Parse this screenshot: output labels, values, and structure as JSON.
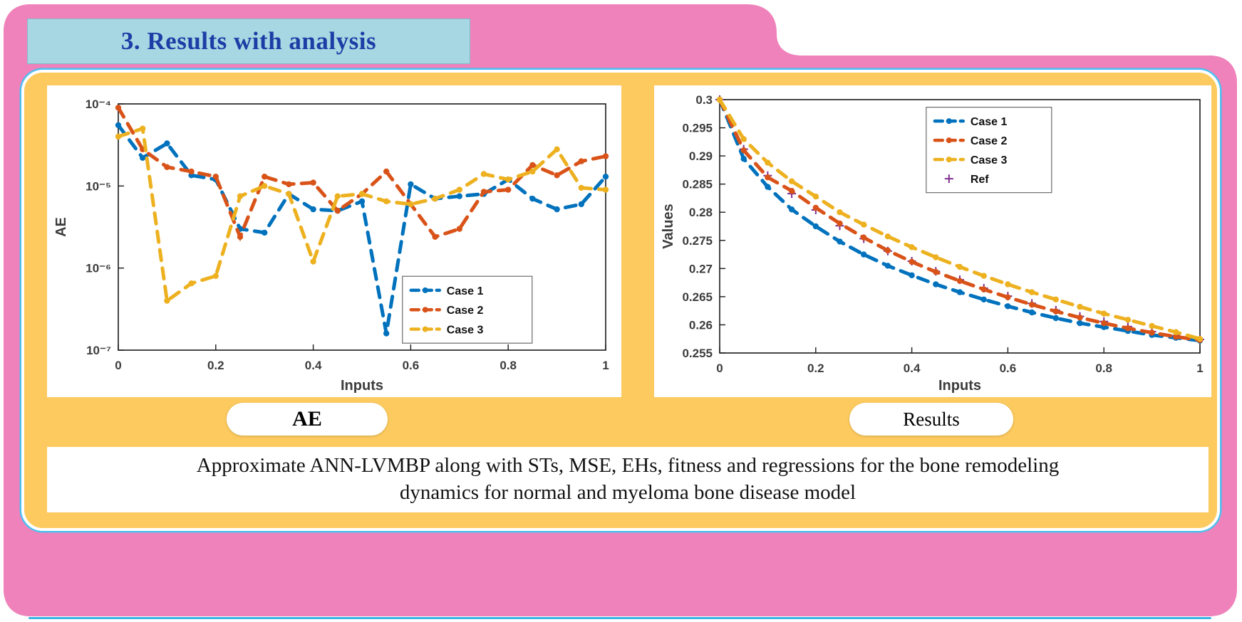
{
  "title": {
    "text": "3. Results with analysis"
  },
  "labels": {
    "ae_pill": "AE",
    "results_pill": "Results"
  },
  "caption": {
    "line1": "Approximate ANN-LVMBP along with STs, MSE, EHs, fitness and regressions for the bone remodeling",
    "line2": "dynamics for normal and myeloma bone disease model"
  },
  "colors": {
    "pink_card": "#ef82ba",
    "yellow_panel": "#fcca5e",
    "title_bg": "#a7d7e2",
    "title_text": "#1d3da6",
    "panel_outline": "#4cc0f0",
    "case1": "#0072BD",
    "case2": "#D95319",
    "case3": "#EDB120",
    "ref": "#7E2F8E"
  },
  "chart_data": [
    {
      "type": "line",
      "name": "ae-chart",
      "title": "",
      "xlabel": "Inputs",
      "ylabel": "AE",
      "xlim": [
        0,
        1
      ],
      "ylim": [
        1e-07,
        0.0001
      ],
      "yscale": "log",
      "grid": false,
      "legend_position": "inside-lower-right",
      "xticks": [
        {
          "v": 0,
          "label": "0"
        },
        {
          "v": 0.2,
          "label": "0.2"
        },
        {
          "v": 0.4,
          "label": "0.4"
        },
        {
          "v": 0.6,
          "label": "0.6"
        },
        {
          "v": 0.8,
          "label": "0.8"
        },
        {
          "v": 1,
          "label": "1"
        }
      ],
      "yticks": [
        {
          "v": 1e-07,
          "label": "10⁻⁷"
        },
        {
          "v": 1e-06,
          "label": "10⁻⁶"
        },
        {
          "v": 1e-05,
          "label": "10⁻⁵"
        },
        {
          "v": 0.0001,
          "label": "10⁻⁴"
        }
      ],
      "x": [
        0,
        0.05,
        0.1,
        0.15,
        0.2,
        0.25,
        0.3,
        0.35,
        0.4,
        0.45,
        0.5,
        0.55,
        0.6,
        0.65,
        0.7,
        0.75,
        0.8,
        0.85,
        0.9,
        0.95,
        1
      ],
      "series": [
        {
          "name": "Case 1",
          "color": "#0072BD",
          "style": "dashed",
          "values": [
            5.5e-05,
            2.2e-05,
            3.3e-05,
            1.35e-05,
            1.2e-05,
            3e-06,
            2.7e-06,
            8e-06,
            5.2e-06,
            5e-06,
            6.5e-06,
            1.6e-07,
            1.05e-05,
            7e-06,
            7.5e-06,
            8e-06,
            1.2e-05,
            7e-06,
            5.2e-06,
            6e-06,
            1.3e-05
          ]
        },
        {
          "name": "Case 2",
          "color": "#D95319",
          "style": "dashed",
          "values": [
            9e-05,
            2.8e-05,
            1.7e-05,
            1.5e-05,
            1.3e-05,
            2.4e-06,
            1.3e-05,
            1.05e-05,
            1.1e-05,
            5e-06,
            8e-06,
            1.5e-05,
            6e-06,
            2.4e-06,
            3e-06,
            8.5e-06,
            9e-06,
            1.8e-05,
            1.35e-05,
            2e-05,
            2.3e-05
          ]
        },
        {
          "name": "Case 3",
          "color": "#EDB120",
          "style": "dashed",
          "values": [
            4e-05,
            5e-05,
            4e-07,
            6.5e-07,
            8e-07,
            7.5e-06,
            1e-05,
            8e-06,
            1.2e-06,
            7.5e-06,
            8e-06,
            6.5e-06,
            6e-06,
            7e-06,
            9e-06,
            1.4e-05,
            1.2e-05,
            1.5e-05,
            2.8e-05,
            9.5e-06,
            9e-06
          ]
        }
      ]
    },
    {
      "type": "line",
      "name": "results-chart",
      "title": "",
      "xlabel": "Inputs",
      "ylabel": "Values",
      "xlim": [
        0,
        1
      ],
      "ylim": [
        0.255,
        0.3
      ],
      "yscale": "linear",
      "grid": false,
      "legend_position": "inside-upper-right",
      "xticks": [
        {
          "v": 0,
          "label": "0"
        },
        {
          "v": 0.2,
          "label": "0.2"
        },
        {
          "v": 0.4,
          "label": "0.4"
        },
        {
          "v": 0.6,
          "label": "0.6"
        },
        {
          "v": 0.8,
          "label": "0.8"
        },
        {
          "v": 1,
          "label": "1"
        }
      ],
      "yticks": [
        {
          "v": 0.255,
          "label": "0.255"
        },
        {
          "v": 0.26,
          "label": "0.26"
        },
        {
          "v": 0.265,
          "label": "0.265"
        },
        {
          "v": 0.27,
          "label": "0.27"
        },
        {
          "v": 0.275,
          "label": "0.275"
        },
        {
          "v": 0.28,
          "label": "0.28"
        },
        {
          "v": 0.285,
          "label": "0.285"
        },
        {
          "v": 0.29,
          "label": "0.29"
        },
        {
          "v": 0.295,
          "label": "0.295"
        },
        {
          "v": 0.3,
          "label": "0.3"
        }
      ],
      "x": [
        0,
        0.05,
        0.1,
        0.15,
        0.2,
        0.25,
        0.3,
        0.35,
        0.4,
        0.45,
        0.5,
        0.55,
        0.6,
        0.65,
        0.7,
        0.75,
        0.8,
        0.85,
        0.9,
        0.95,
        1
      ],
      "series": [
        {
          "name": "Case 1",
          "color": "#0072BD",
          "style": "dashed",
          "values": [
            0.3,
            0.2895,
            0.2845,
            0.2805,
            0.2775,
            0.2748,
            0.2725,
            0.2705,
            0.2688,
            0.2672,
            0.2658,
            0.2645,
            0.2633,
            0.2622,
            0.2612,
            0.2603,
            0.2596,
            0.2589,
            0.2582,
            0.2577,
            0.2572
          ]
        },
        {
          "name": "Case 2",
          "color": "#D95319",
          "style": "dashed",
          "values": [
            0.3,
            0.291,
            0.2862,
            0.2838,
            0.2808,
            0.278,
            0.2755,
            0.2732,
            0.2712,
            0.2694,
            0.2678,
            0.2663,
            0.2649,
            0.2636,
            0.2624,
            0.2613,
            0.2603,
            0.2594,
            0.2586,
            0.2579,
            0.2573
          ]
        },
        {
          "name": "Case 3",
          "color": "#EDB120",
          "style": "dashed",
          "values": [
            0.3,
            0.293,
            0.2888,
            0.2855,
            0.2828,
            0.28,
            0.2778,
            0.2757,
            0.2738,
            0.272,
            0.2703,
            0.2687,
            0.2672,
            0.2658,
            0.2645,
            0.2632,
            0.262,
            0.2609,
            0.2598,
            0.2587,
            0.2575
          ]
        },
        {
          "name": "Ref",
          "color": "#7E2F8E",
          "style": "marker-plus",
          "line": false,
          "values": [
            0.3,
            0.2912,
            0.2865,
            0.2833,
            0.2804,
            0.2776,
            0.2753,
            0.2731,
            0.2713,
            0.2695,
            0.268,
            0.2665,
            0.2651,
            0.2638,
            0.2626,
            0.2615,
            0.2606,
            0.2597,
            0.2588,
            0.2581,
            0.2574
          ]
        }
      ]
    }
  ]
}
